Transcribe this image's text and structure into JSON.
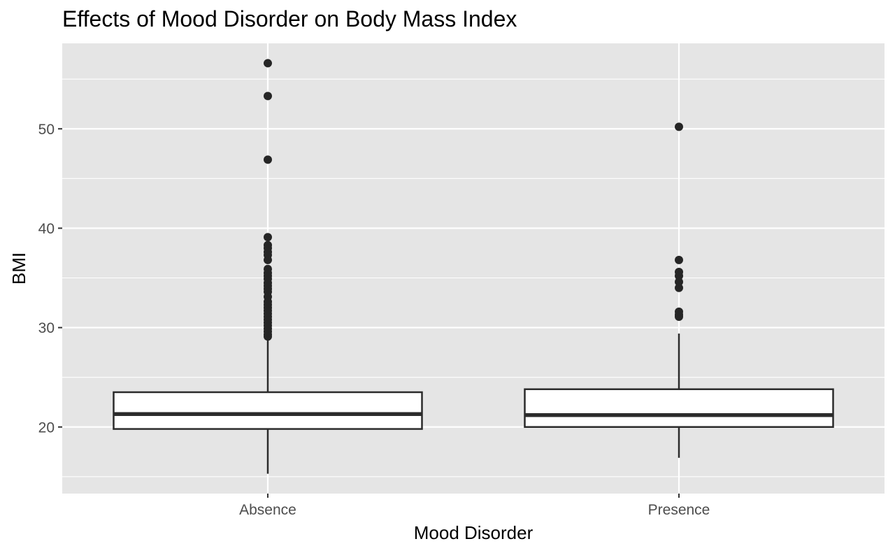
{
  "chart_data": {
    "type": "box",
    "title": "Effects of Mood Disorder on Body Mass Index",
    "xlabel": "Mood Disorder",
    "ylabel": "BMI",
    "ylim": [
      13.3,
      58.6
    ],
    "yticks": [
      20,
      30,
      40,
      50
    ],
    "grid": true,
    "categories": [
      "Absence",
      "Presence"
    ],
    "boxes": [
      {
        "category": "Absence",
        "whisker_low": 15.3,
        "q1": 19.8,
        "median": 21.3,
        "q3": 23.5,
        "whisker_high": 29.0,
        "outliers": [
          56.6,
          53.3,
          46.9,
          39.1,
          38.3,
          38.0,
          37.6,
          37.3,
          36.8,
          35.9,
          35.5,
          35.2,
          34.9,
          34.5,
          34.2,
          33.9,
          33.6,
          33.1,
          32.6,
          32.3,
          32.0,
          31.7,
          31.4,
          31.1,
          30.8,
          30.5,
          30.2,
          29.9,
          29.6,
          29.3,
          29.1
        ]
      },
      {
        "category": "Presence",
        "whisker_low": 16.9,
        "q1": 20.0,
        "median": 21.2,
        "q3": 23.8,
        "whisker_high": 29.4,
        "outliers": [
          50.2,
          36.8,
          35.6,
          35.2,
          34.6,
          34.0,
          31.6,
          31.3,
          31.1
        ]
      }
    ],
    "colors": {
      "panel": "#e5e5e5",
      "grid": "#ffffff",
      "box_fill": "#ffffff",
      "box_stroke": "#2b2b2b",
      "point": "#262626",
      "tick_text": "#4d4d4d"
    }
  }
}
